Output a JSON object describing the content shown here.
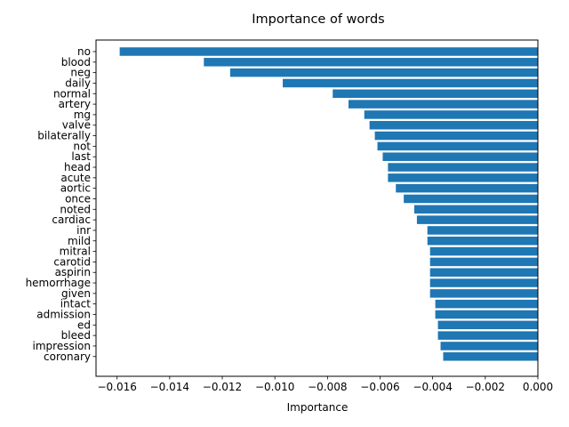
{
  "chart_data": {
    "type": "bar",
    "orientation": "horizontal",
    "title": "Importance of words",
    "xlabel": "Importance",
    "ylabel": "",
    "xlim": [
      -0.0168,
      0.0
    ],
    "x_ticks": [
      "−0.016",
      "−0.014",
      "−0.012",
      "−0.010",
      "−0.008",
      "−0.006",
      "−0.004",
      "−0.002",
      "0.000"
    ],
    "x_tick_values": [
      -0.016,
      -0.014,
      -0.012,
      -0.01,
      -0.008,
      -0.006,
      -0.004,
      -0.002,
      0.0
    ],
    "bar_color": "#1f77b4",
    "grid": false,
    "legend": "none",
    "categories": [
      "no",
      "blood",
      "neg",
      "daily",
      "normal",
      "artery",
      "mg",
      "valve",
      "bilaterally",
      "not",
      "last",
      "head",
      "acute",
      "aortic",
      "once",
      "noted",
      "cardiac",
      "inr",
      "mild",
      "mitral",
      "carotid",
      "aspirin",
      "hemorrhage",
      "given",
      "intact",
      "admission",
      "ed",
      "bleed",
      "impression",
      "coronary"
    ],
    "values": [
      -0.0159,
      -0.0127,
      -0.0117,
      -0.0097,
      -0.0078,
      -0.0072,
      -0.0066,
      -0.0064,
      -0.0062,
      -0.0061,
      -0.0059,
      -0.0057,
      -0.0057,
      -0.0054,
      -0.0051,
      -0.0047,
      -0.0046,
      -0.0042,
      -0.0042,
      -0.0041,
      -0.0041,
      -0.0041,
      -0.0041,
      -0.0041,
      -0.0039,
      -0.0039,
      -0.0038,
      -0.0038,
      -0.0037,
      -0.0036
    ]
  }
}
